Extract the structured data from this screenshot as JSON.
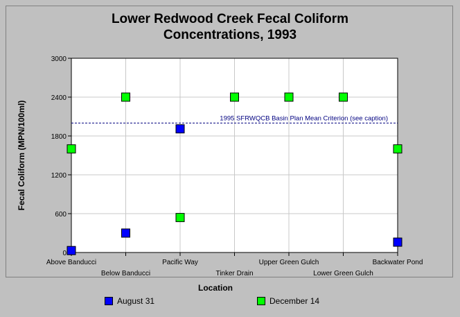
{
  "chart_data": {
    "type": "scatter",
    "title": [
      "Lower Redwood Creek Fecal Coliform",
      "Concentrations, 1993"
    ],
    "xlabel": "Location",
    "ylabel": "Fecal Coliform (MPN/100ml)",
    "ylim": [
      0,
      3000
    ],
    "yticks": [
      0,
      600,
      1200,
      1800,
      2400,
      3000
    ],
    "categories": [
      "Above Banducci",
      "Below Banducci",
      "Pacific Way",
      "Tinker Drain",
      "Upper Green Gulch",
      "Lower Green Gulch",
      "Backwater Pond"
    ],
    "grid": true,
    "legend_position": "bottom",
    "series": [
      {
        "name": "August 31",
        "color": "#0000ff",
        "values": [
          30,
          300,
          1910,
          null,
          null,
          null,
          160
        ]
      },
      {
        "name": "December 14",
        "color": "#00ff00",
        "values": [
          1600,
          2400,
          540,
          2400,
          2400,
          2400,
          1600
        ]
      }
    ],
    "reference_line": {
      "value": 2000,
      "label": "1995 SFRWQCB Basin Plan Mean Criterion (see caption)",
      "color": "#000080"
    }
  }
}
